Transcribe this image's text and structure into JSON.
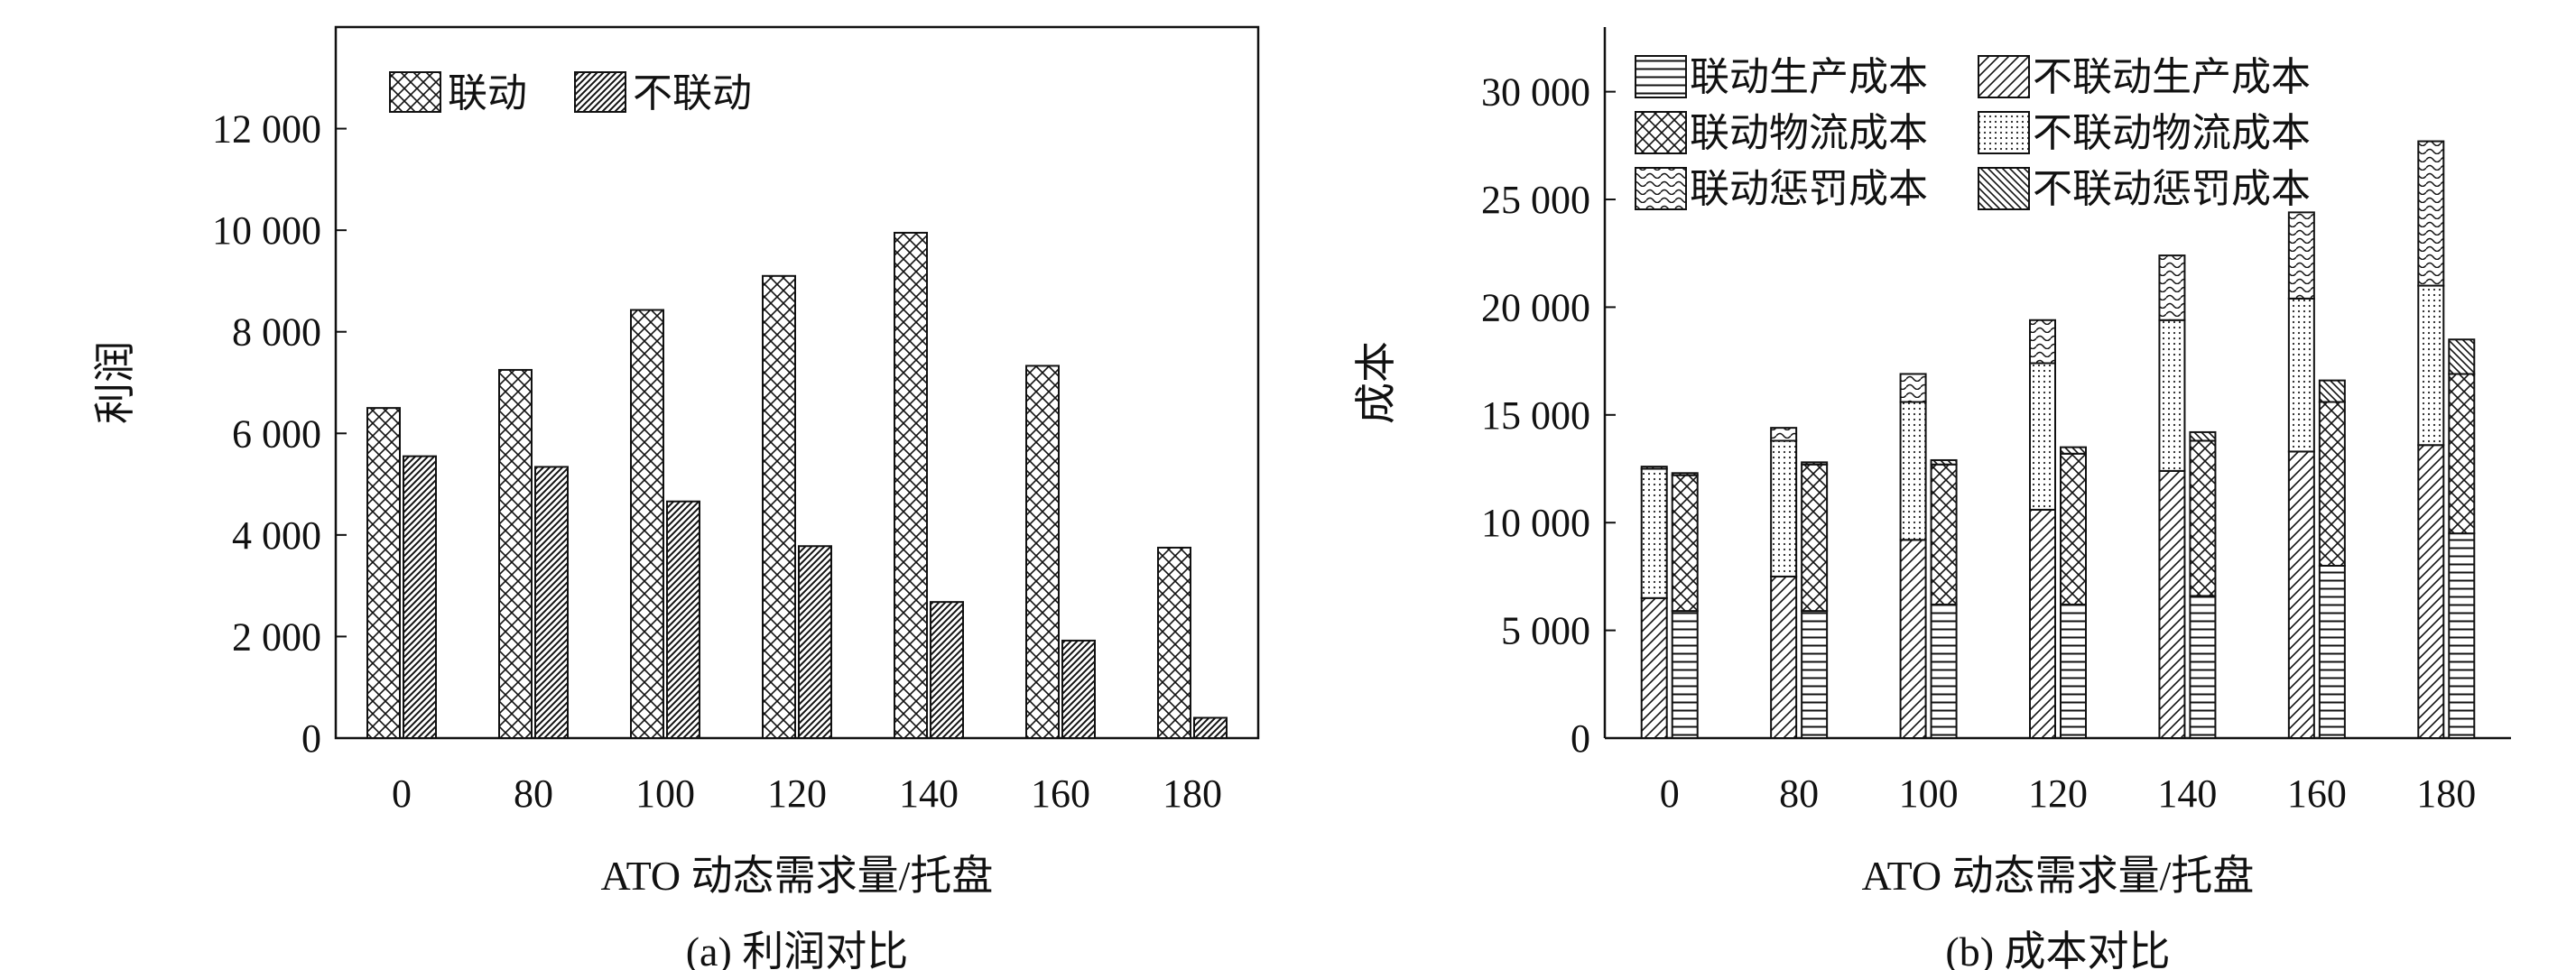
{
  "panels": [
    {
      "caption": "(a) 利润对比",
      "chart_data": {
        "type": "bar",
        "categories": [
          "0",
          "80",
          "100",
          "120",
          "140",
          "160",
          "180"
        ],
        "series": [
          {
            "name": "联动",
            "values": [
              6500,
              7250,
              8430,
              9100,
              9950,
              7330,
              3750
            ]
          },
          {
            "name": "不联动",
            "values": [
              5550,
              5340,
              4660,
              3780,
              2680,
              1920,
              400
            ]
          }
        ],
        "xlabel": "ATO 动态需求量/托盘",
        "ylabel": "利润",
        "ylim": [
          0,
          14000
        ],
        "yticks": [
          0,
          2000,
          4000,
          6000,
          8000,
          10000,
          12000
        ],
        "ytick_labels": [
          "0",
          "2 000",
          "4 000",
          "6 000",
          "8 000",
          "10 000",
          "12 000"
        ],
        "grid": false,
        "legend_position": "top-left"
      }
    },
    {
      "caption": "(b) 成本对比",
      "chart_data": {
        "type": "bar",
        "stacked": true,
        "categories": [
          "0",
          "80",
          "100",
          "120",
          "140",
          "160",
          "180"
        ],
        "groups": [
          {
            "name": "联动",
            "series": [
              {
                "name": "联动生产成本",
                "values": [
                  6500,
                  7500,
                  9200,
                  10600,
                  12400,
                  13300,
                  13600
                ]
              },
              {
                "name": "联动物流成本",
                "values": [
                  6000,
                  6300,
                  6400,
                  6800,
                  7000,
                  7100,
                  7400
                ]
              },
              {
                "name": "联动惩罚成本",
                "values": [
                  100,
                  600,
                  1300,
                  2000,
                  3000,
                  4000,
                  6700
                ]
              }
            ]
          },
          {
            "name": "不联动",
            "series": [
              {
                "name": "不联动生产成本",
                "values": [
                  5900,
                  5900,
                  6200,
                  6200,
                  6600,
                  8000,
                  9500
                ]
              },
              {
                "name": "不联动物流成本",
                "values": [
                  6300,
                  6800,
                  6500,
                  7000,
                  7200,
                  7600,
                  7400
                ]
              },
              {
                "name": "不联动惩罚成本",
                "values": [
                  100,
                  100,
                  200,
                  300,
                  400,
                  1000,
                  1600
                ]
              }
            ]
          }
        ],
        "xlabel": "ATO 动态需求量/托盘",
        "ylabel": "成本",
        "ylim": [
          0,
          33000
        ],
        "yticks": [
          0,
          5000,
          10000,
          15000,
          20000,
          25000,
          30000
        ],
        "ytick_labels": [
          "0",
          "5 000",
          "10 000",
          "15 000",
          "20 000",
          "25 000",
          "30 000"
        ],
        "grid": false,
        "legend_position": "top-left"
      }
    }
  ]
}
